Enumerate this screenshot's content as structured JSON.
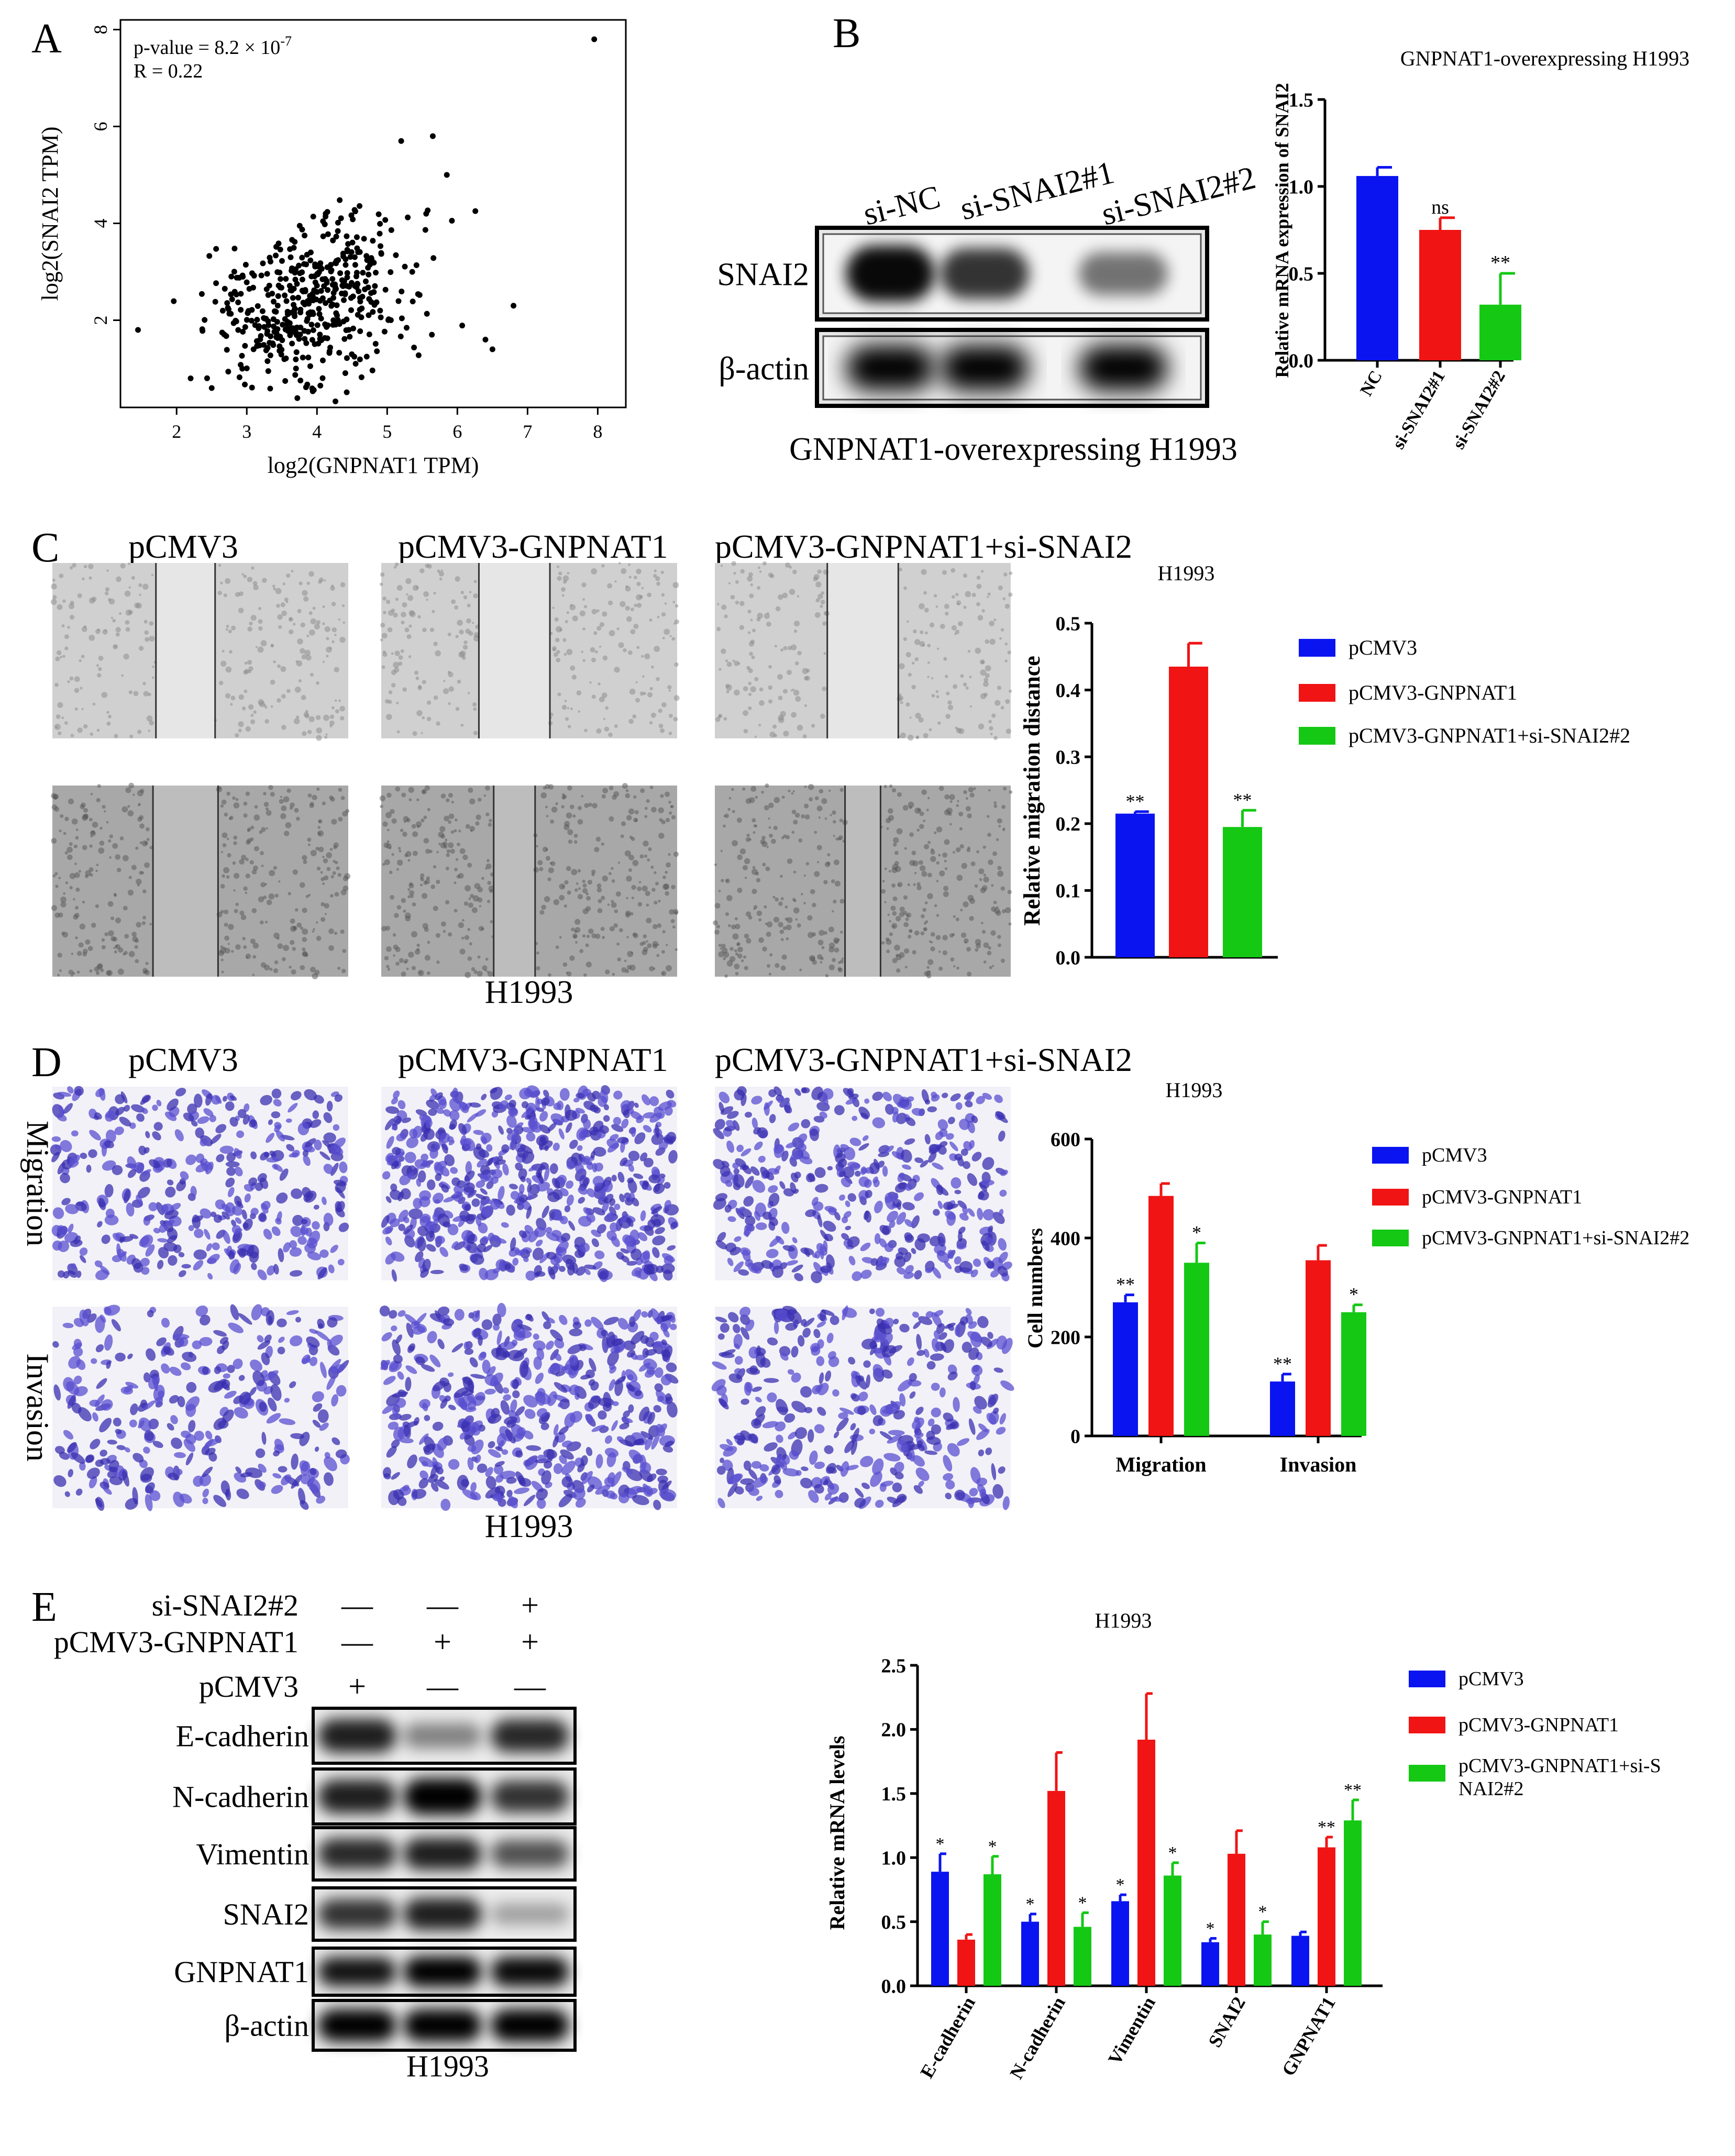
{
  "panels": {
    "A": "A",
    "B": "B",
    "C": "C",
    "D": "D",
    "E": "E"
  },
  "colors": {
    "blue": "#0a14f0",
    "red": "#f01414",
    "green": "#14c814",
    "ink": "#000000"
  },
  "chart_data": [
    {
      "id": "A",
      "type": "scatter",
      "xlabel": "log2(GNPNAT1 TPM)",
      "ylabel": "log2(SNAI2 TPM)",
      "xlim": [
        1.2,
        8.4
      ],
      "ylim": [
        0.2,
        8.2
      ],
      "xticks": [
        2,
        3,
        4,
        5,
        6,
        7,
        8
      ],
      "yticks": [
        2,
        4,
        6,
        8
      ],
      "annotation": [
        "p-value = 8.2 × 10",
        "-7",
        "R = 0.22"
      ],
      "seed": 20231,
      "n_points": 480,
      "outliers": [
        [
          7.95,
          7.8
        ],
        [
          1.45,
          1.8
        ],
        [
          6.5,
          1.4
        ],
        [
          6.8,
          2.3
        ],
        [
          6.4,
          1.6
        ],
        [
          5.2,
          5.7
        ],
        [
          5.65,
          5.8
        ],
        [
          5.85,
          5.0
        ],
        [
          2.2,
          0.8
        ],
        [
          2.5,
          0.6
        ]
      ]
    },
    {
      "id": "B",
      "type": "bar",
      "title": "GNPNAT1-overexpressing H1993",
      "ylabel": "Relative mRNA expression of SNAI2",
      "categories": [
        "NC",
        "si-SNAI2#1",
        "si-SNAI2#2"
      ],
      "values": [
        1.06,
        0.75,
        0.32
      ],
      "errors": [
        0.05,
        0.07,
        0.18
      ],
      "significance": [
        "",
        "ns",
        "**"
      ],
      "ylim": [
        0,
        1.5
      ],
      "yticks": [
        "0.0",
        "0.5",
        "1.0",
        "1.5"
      ]
    },
    {
      "id": "C",
      "type": "bar",
      "title": "H1993",
      "ylabel": "Relative migration distance",
      "series": [
        {
          "name": "pCMV3",
          "value": 0.215,
          "error": 0.003,
          "sig": "**"
        },
        {
          "name": "pCMV3-GNPNAT1",
          "value": 0.435,
          "error": 0.035,
          "sig": ""
        },
        {
          "name": "pCMV3-GNPNAT1+si-SNAI2#2",
          "value": 0.195,
          "error": 0.025,
          "sig": "**"
        }
      ],
      "ylim": [
        0,
        0.5
      ],
      "yticks": [
        "0.0",
        "0.1",
        "0.2",
        "0.3",
        "0.4",
        "0.5"
      ]
    },
    {
      "id": "D",
      "type": "bar",
      "title": "H1993",
      "ylabel": "Cell numbers",
      "categories": [
        "Migration",
        "Invasion"
      ],
      "series": [
        {
          "name": "pCMV3",
          "values": [
            270,
            110
          ],
          "errors": [
            15,
            15
          ],
          "sig": [
            "**",
            "**"
          ]
        },
        {
          "name": "pCMV3-GNPNAT1",
          "values": [
            485,
            355
          ],
          "errors": [
            25,
            30
          ],
          "sig": [
            "",
            ""
          ]
        },
        {
          "name": "pCMV3-GNPNAT1+si-SNAI2#2",
          "values": [
            350,
            250
          ],
          "errors": [
            40,
            15
          ],
          "sig": [
            "*",
            "*"
          ]
        }
      ],
      "ylim": [
        0,
        600
      ],
      "yticks": [
        "0",
        "200",
        "400",
        "600"
      ]
    },
    {
      "id": "E",
      "type": "bar",
      "title": "H1993",
      "ylabel": "Relative mRNA levels",
      "categories": [
        "E-cadherin",
        "N-cadherin",
        "Vimentin",
        "SNAI2",
        "GNPNAT1"
      ],
      "series": [
        {
          "name": "pCMV3",
          "values": [
            0.89,
            0.5,
            0.66,
            0.34,
            0.39
          ],
          "errors": [
            0.14,
            0.06,
            0.05,
            0.03,
            0.03
          ],
          "sig": [
            "*",
            "*",
            "*",
            "*",
            ""
          ]
        },
        {
          "name": "pCMV3-GNPNAT1",
          "values": [
            0.36,
            1.52,
            1.92,
            1.03,
            1.08
          ],
          "errors": [
            0.04,
            0.3,
            0.36,
            0.18,
            0.08
          ],
          "sig": [
            "",
            "",
            "",
            "",
            "**"
          ]
        },
        {
          "name": "pCMV3-GNPNAT1+si-SNAI2#2",
          "values": [
            0.87,
            0.46,
            0.86,
            0.4,
            1.29
          ],
          "errors": [
            0.14,
            0.11,
            0.1,
            0.1,
            0.16
          ],
          "sig": [
            "*",
            "*",
            "*",
            "*",
            "**"
          ]
        }
      ],
      "legend_names": [
        "pCMV3",
        "pCMV3-GNPNAT1",
        "pCMV3-GNPNAT1+si-S",
        "NAI2#2"
      ],
      "ylim": [
        0,
        2.5
      ],
      "yticks": [
        "0.0",
        "0.5",
        "1.0",
        "1.5",
        "2.0",
        "2.5"
      ]
    }
  ],
  "blotB": {
    "lanes": [
      "si-NC",
      "si-SNAI2#1",
      "si-SNAI2#2"
    ],
    "rows": [
      {
        "label": "SNAI2",
        "intensity": [
          0.95,
          0.75,
          0.45
        ]
      },
      {
        "label": "β-actin",
        "intensity": [
          1,
          1,
          1
        ]
      }
    ],
    "caption": "GNPNAT1-overexpressing H1993"
  },
  "woundC": {
    "columns": [
      "pCMV3",
      "pCMV3-GNPNAT1",
      "pCMV3-GNPNAT1+si-SNAI2"
    ],
    "caption": "H1993"
  },
  "transwellD": {
    "columns": [
      "pCMV3",
      "pCMV3-GNPNAT1",
      "pCMV3-GNPNAT1+si-SNAI2"
    ],
    "rows": [
      "Migration",
      "Invasion"
    ],
    "caption": "H1993"
  },
  "blotE": {
    "conditions": [
      {
        "label": "si-SNAI2#2",
        "marks": [
          "—",
          "—",
          "+"
        ]
      },
      {
        "label": "pCMV3-GNPNAT1",
        "marks": [
          "—",
          "+",
          "+"
        ]
      },
      {
        "label": "pCMV3",
        "marks": [
          "+",
          "—",
          "—"
        ]
      }
    ],
    "rows": [
      {
        "label": "E-cadherin",
        "intensity": [
          0.85,
          0.35,
          0.8
        ]
      },
      {
        "label": "N-cadherin",
        "intensity": [
          0.85,
          1,
          0.75
        ]
      },
      {
        "label": "Vimentin",
        "intensity": [
          0.8,
          0.85,
          0.6
        ]
      },
      {
        "label": "SNAI2",
        "intensity": [
          0.75,
          0.85,
          0.2
        ]
      },
      {
        "label": "GNPNAT1",
        "intensity": [
          0.9,
          1,
          0.95
        ]
      },
      {
        "label": "β-actin",
        "intensity": [
          1,
          1,
          1
        ]
      }
    ],
    "caption": "H1993"
  }
}
